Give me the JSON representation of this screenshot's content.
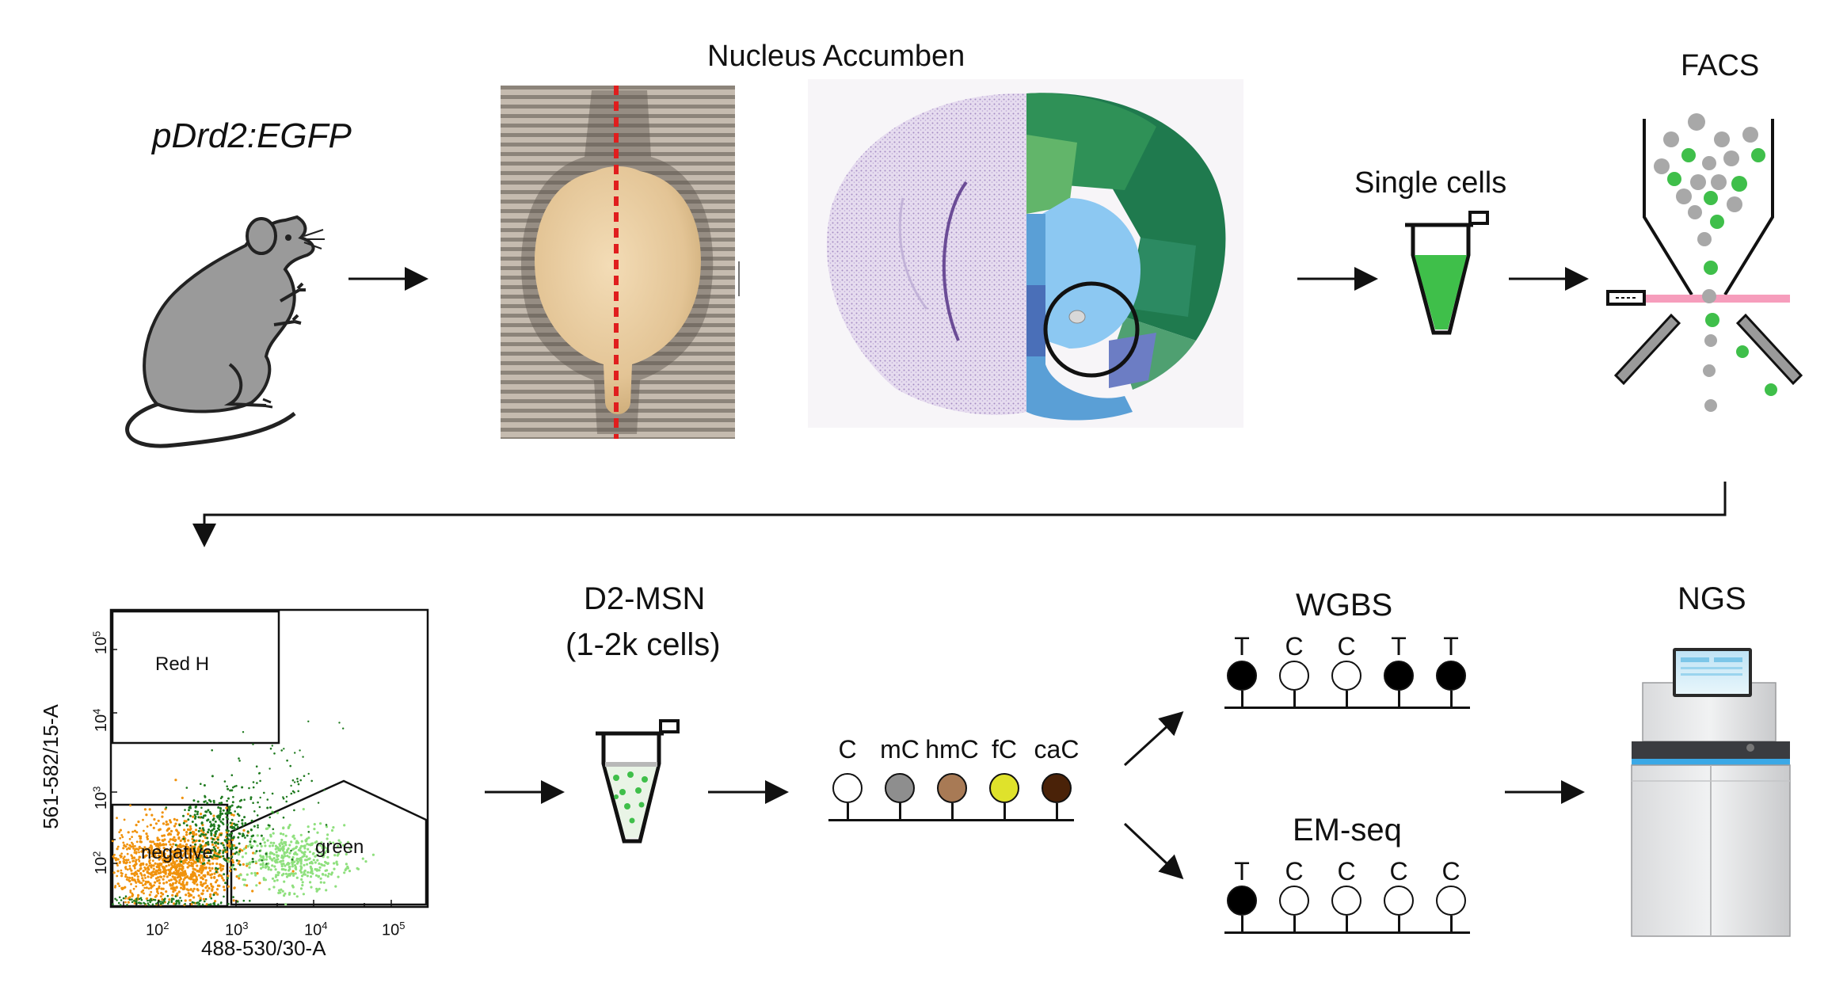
{
  "labels": {
    "mouse_line": "pDrd2:EGFP",
    "nucleus": "Nucleus Accumben",
    "single_cells": "Single cells",
    "facs": "FACS",
    "d2msn_line1": "D2-MSN",
    "d2msn_line2": "(1-2k cells)",
    "wgbs": "WGBS",
    "emseq": "EM-seq",
    "ngs": "NGS"
  },
  "cytosines": [
    {
      "label": "C",
      "color": "#ffffff"
    },
    {
      "label": "mC",
      "color": "#8e8e8e"
    },
    {
      "label": "hmC",
      "color": "#a87a55"
    },
    {
      "label": "fC",
      "color": "#dfe22b"
    },
    {
      "label": "caC",
      "color": "#4a2208"
    }
  ],
  "wgbs_bases": [
    {
      "label": "T",
      "filled": true
    },
    {
      "label": "C",
      "filled": false
    },
    {
      "label": "C",
      "filled": false
    },
    {
      "label": "T",
      "filled": true
    },
    {
      "label": "T",
      "filled": true
    }
  ],
  "emseq_bases": [
    {
      "label": "T",
      "filled": true
    },
    {
      "label": "C",
      "filled": false
    },
    {
      "label": "C",
      "filled": false
    },
    {
      "label": "C",
      "filled": false
    },
    {
      "label": "C",
      "filled": false
    }
  ],
  "flow_plot": {
    "ylabel": "561-582/15-A",
    "xlabel": "488-530/30-A",
    "gate_red": "Red H",
    "gate_negative": "negative",
    "gate_green": "green",
    "ticks": [
      {
        "base": "10",
        "exp": "2"
      },
      {
        "base": "10",
        "exp": "3"
      },
      {
        "base": "10",
        "exp": "4"
      },
      {
        "base": "10",
        "exp": "5"
      }
    ]
  },
  "colors": {
    "green_cell": "#3fbf4a",
    "grey_cell": "#a8a8a8",
    "orange_pop": "#f0920c",
    "dark_green_pop": "#1f7a1f",
    "light_green_pop": "#8fe07e",
    "laser": "#f48cb0"
  }
}
